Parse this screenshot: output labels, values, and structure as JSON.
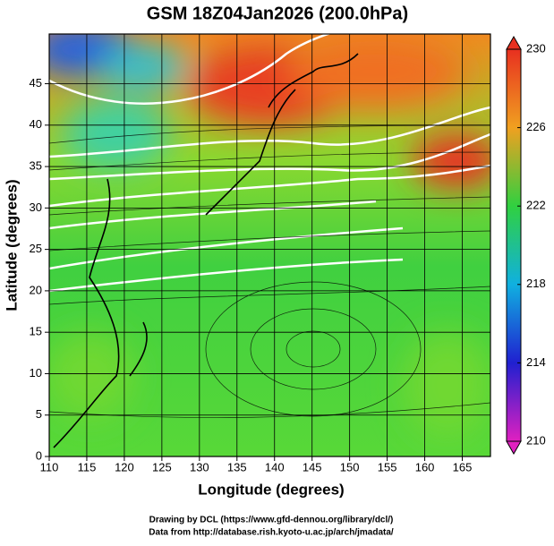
{
  "chart_data": {
    "type": "map",
    "title": "GSM 18Z04Jan2026 (200.0hPa)",
    "x_label": "Longitude (degrees)",
    "y_label": "Latitude  (degrees)",
    "xlim": [
      110,
      168.75
    ],
    "ylim": [
      0,
      51
    ],
    "xticks": [
      110,
      115,
      120,
      125,
      130,
      135,
      140,
      145,
      150,
      155,
      160,
      165
    ],
    "yticks": [
      0,
      5,
      10,
      15,
      20,
      25,
      30,
      35,
      40,
      45
    ],
    "grid": true,
    "colorbar": {
      "lim": [
        210,
        230
      ],
      "ticks": [
        210,
        214,
        218,
        222,
        226,
        230
      ],
      "colors": [
        "#e020c0",
        "#2020d0",
        "#10b0e0",
        "#30d040",
        "#f0a020",
        "#e83020"
      ]
    },
    "credits": [
      "Drawing by DCL (https://www.gfd-dennou.org/library/dcl/)",
      "Data from http://database.rish.kyoto-u.ac.jp/arch/jmadata/"
    ]
  }
}
